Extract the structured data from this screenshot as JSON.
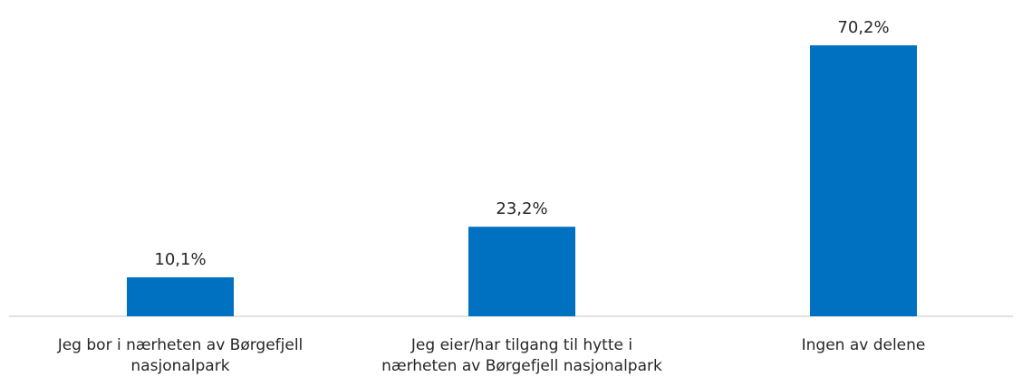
{
  "chart_data": {
    "type": "bar",
    "title": "",
    "xlabel": "",
    "ylabel": "",
    "ylim": [
      0,
      75
    ],
    "grid": false,
    "legend": "none",
    "categories": [
      "Jeg bor i nærheten av Børgefjell nasjonalpark",
      "Jeg eier/har tilgang til hytte i nærheten av Børgefjell nasjonalpark",
      "Ingen av delene"
    ],
    "values": [
      10.1,
      23.2,
      70.2
    ],
    "labels": [
      "10,1%",
      "23,2%",
      "70,2%"
    ],
    "bar_color": "#0070c0",
    "axis_color": "#d9d9d9"
  }
}
